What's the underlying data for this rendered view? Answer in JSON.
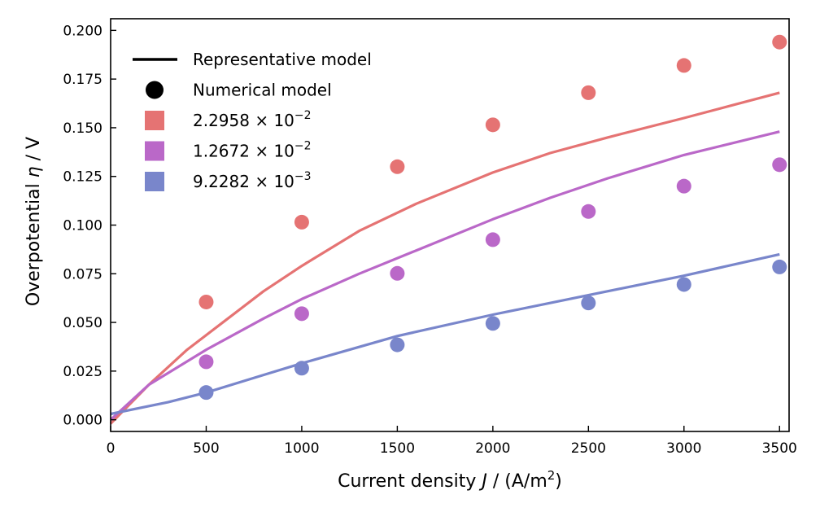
{
  "chart_data": {
    "type": "scatter",
    "xlabel_prefix": "Current density ",
    "xlabel_var": "J",
    "xlabel_suffix": " / (A/m",
    "xlabel_sup": "2",
    "xlabel_close": ")",
    "ylabel_prefix": "Overpotential ",
    "ylabel_var": "η",
    "ylabel_suffix": " / V",
    "xlim": [
      0,
      3550
    ],
    "ylim": [
      -0.006,
      0.206
    ],
    "xticks": [
      0,
      500,
      1000,
      1500,
      2000,
      2500,
      3000,
      3500
    ],
    "yticks": [
      0.0,
      0.025,
      0.05,
      0.075,
      0.1,
      0.125,
      0.15,
      0.175,
      0.2
    ],
    "grid": false,
    "legend_position": "top-left",
    "legend": [
      {
        "kind": "line",
        "label": "Representative model",
        "color": "#000000"
      },
      {
        "kind": "circle",
        "label": "Numerical model",
        "color": "#000000"
      },
      {
        "kind": "square",
        "mantissa": "2.2958",
        "times": " × 10",
        "exponent": "−2",
        "color": "#e57373"
      },
      {
        "kind": "square",
        "mantissa": "1.2672",
        "times": " × 10",
        "exponent": "−2",
        "color": "#ba68c8"
      },
      {
        "kind": "square",
        "mantissa": "9.2282",
        "times": " × 10",
        "exponent": "−3",
        "color": "#7986cb"
      }
    ],
    "series": [
      {
        "color": "#e57373",
        "points_x": [
          500,
          1000,
          1500,
          2000,
          2500,
          3000,
          3500
        ],
        "points_y": [
          0.0605,
          0.1015,
          0.13,
          0.1515,
          0.168,
          0.182,
          0.194
        ],
        "line_x": [
          0,
          200,
          400,
          600,
          800,
          1000,
          1300,
          1600,
          2000,
          2300,
          2600,
          3000,
          3500
        ],
        "line_y": [
          -0.002,
          0.018,
          0.036,
          0.051,
          0.066,
          0.079,
          0.097,
          0.111,
          0.127,
          0.137,
          0.145,
          0.155,
          0.168
        ]
      },
      {
        "color": "#ba68c8",
        "points_x": [
          500,
          1000,
          1500,
          2000,
          2500,
          3000,
          3500
        ],
        "points_y": [
          0.0298,
          0.0545,
          0.0752,
          0.0925,
          0.107,
          0.12,
          0.131
        ],
        "line_x": [
          0,
          200,
          500,
          800,
          1000,
          1300,
          1600,
          2000,
          2300,
          2600,
          3000,
          3500
        ],
        "line_y": [
          0.0,
          0.018,
          0.036,
          0.052,
          0.062,
          0.075,
          0.087,
          0.103,
          0.114,
          0.124,
          0.136,
          0.148
        ]
      },
      {
        "color": "#7986cb",
        "points_x": [
          500,
          1000,
          1500,
          2000,
          2500,
          3000,
          3500
        ],
        "points_y": [
          0.014,
          0.0265,
          0.0385,
          0.0495,
          0.06,
          0.0695,
          0.0785
        ],
        "line_x": [
          0,
          300,
          500,
          800,
          1000,
          1500,
          2000,
          2500,
          3000,
          3500
        ],
        "line_y": [
          0.003,
          0.009,
          0.014,
          0.023,
          0.029,
          0.043,
          0.054,
          0.064,
          0.074,
          0.085
        ]
      }
    ]
  }
}
